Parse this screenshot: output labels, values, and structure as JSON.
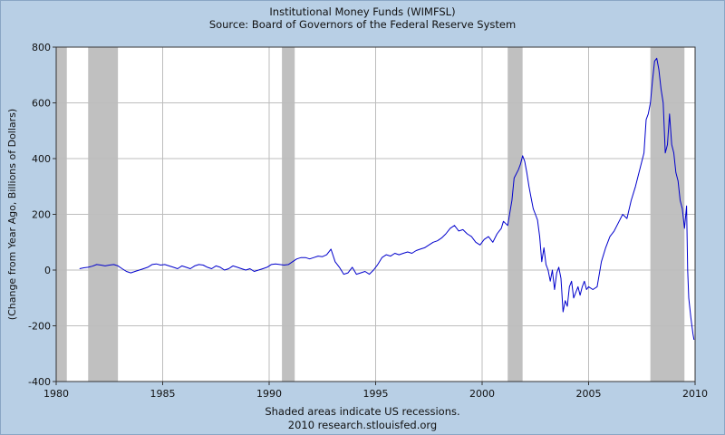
{
  "chart_data": {
    "type": "line",
    "title": "Institutional Money Funds (WIMFSL)",
    "subtitle": "Source: Board of Governors of the Federal Reserve System",
    "xlabel": "",
    "ylabel": "(Change from Year Ago, Billions of Dollars)",
    "xlim": [
      1980,
      2010
    ],
    "ylim": [
      -400,
      800
    ],
    "x_ticks": [
      1980,
      1985,
      1990,
      1995,
      2000,
      2005,
      2010
    ],
    "y_ticks": [
      -400,
      -200,
      0,
      200,
      400,
      600,
      800
    ],
    "grid": true,
    "line_color": "#0000cc",
    "recession_color": "#c0c0c0",
    "recessions": [
      [
        1980.0,
        1980.5
      ],
      [
        1981.5,
        1982.9
      ],
      [
        1990.6,
        1991.2
      ],
      [
        2001.2,
        2001.9
      ],
      [
        2007.9,
        2009.5
      ]
    ],
    "series": [
      {
        "x": [
          1981.1,
          1981.3,
          1981.5,
          1981.7,
          1981.9,
          1982.1,
          1982.3,
          1982.5,
          1982.7,
          1982.9,
          1983.1,
          1983.3,
          1983.5,
          1983.7,
          1983.9,
          1984.1,
          1984.3,
          1984.5,
          1984.7,
          1984.9,
          1985.1,
          1985.3,
          1985.5,
          1985.7,
          1985.9,
          1986.1,
          1986.3,
          1986.5,
          1986.7,
          1986.9,
          1987.1,
          1987.3,
          1987.5,
          1987.7,
          1987.9,
          1988.1,
          1988.3,
          1988.5,
          1988.7,
          1988.9,
          1989.1,
          1989.3,
          1989.5,
          1989.7,
          1989.9,
          1990.1,
          1990.3,
          1990.5,
          1990.7,
          1990.9,
          1991.1,
          1991.3,
          1991.5,
          1991.7,
          1991.9,
          1992.1,
          1992.3,
          1992.5,
          1992.7,
          1992.9,
          1993.1,
          1993.3,
          1993.5,
          1993.7,
          1993.9,
          1994.1,
          1994.3,
          1994.5,
          1994.7,
          1994.9,
          1995.1,
          1995.3,
          1995.5,
          1995.7,
          1995.9,
          1996.1,
          1996.3,
          1996.5,
          1996.7,
          1996.9,
          1997.1,
          1997.3,
          1997.5,
          1997.7,
          1997.9,
          1998.1,
          1998.3,
          1998.5,
          1998.7,
          1998.9,
          1999.1,
          1999.3,
          1999.5,
          1999.7,
          1999.9,
          2000.1,
          2000.3,
          2000.5,
          2000.7,
          2000.9,
          2001.0,
          2001.2,
          2001.4,
          2001.5,
          2001.7,
          2001.8,
          2001.9,
          2002.0,
          2002.1,
          2002.2,
          2002.3,
          2002.4,
          2002.5,
          2002.6,
          2002.7,
          2002.8,
          2002.9,
          2003.0,
          2003.1,
          2003.2,
          2003.3,
          2003.4,
          2003.5,
          2003.6,
          2003.7,
          2003.8,
          2003.9,
          2004.0,
          2004.1,
          2004.2,
          2004.3,
          2004.4,
          2004.5,
          2004.6,
          2004.7,
          2004.8,
          2004.9,
          2005.0,
          2005.2,
          2005.4,
          2005.6,
          2005.8,
          2006.0,
          2006.2,
          2006.4,
          2006.6,
          2006.8,
          2007.0,
          2007.2,
          2007.4,
          2007.6,
          2007.7,
          2007.8,
          2007.9,
          2008.0,
          2008.1,
          2008.2,
          2008.3,
          2008.4,
          2008.5,
          2008.6,
          2008.7,
          2008.8,
          2008.9,
          2009.0,
          2009.1,
          2009.2,
          2009.3,
          2009.4,
          2009.5,
          2009.6,
          2009.65,
          2009.7,
          2009.8,
          2009.9,
          2009.95
        ],
        "y": [
          5,
          8,
          10,
          14,
          20,
          18,
          15,
          18,
          20,
          15,
          5,
          -5,
          -10,
          -5,
          0,
          5,
          10,
          20,
          22,
          18,
          20,
          15,
          10,
          5,
          15,
          10,
          5,
          15,
          20,
          18,
          10,
          5,
          15,
          10,
          0,
          5,
          15,
          10,
          5,
          0,
          5,
          -5,
          0,
          5,
          10,
          20,
          22,
          20,
          18,
          20,
          30,
          40,
          45,
          45,
          40,
          45,
          50,
          48,
          55,
          75,
          30,
          10,
          -15,
          -10,
          10,
          -15,
          -10,
          -5,
          -15,
          0,
          20,
          45,
          55,
          50,
          60,
          55,
          60,
          65,
          60,
          70,
          75,
          80,
          90,
          100,
          105,
          115,
          130,
          150,
          160,
          140,
          145,
          130,
          120,
          100,
          90,
          110,
          120,
          100,
          130,
          150,
          175,
          160,
          250,
          330,
          360,
          380,
          410,
          390,
          350,
          300,
          260,
          220,
          200,
          180,
          120,
          30,
          80,
          20,
          0,
          -40,
          0,
          -70,
          -10,
          10,
          -30,
          -150,
          -110,
          -130,
          -60,
          -40,
          -100,
          -80,
          -60,
          -90,
          -60,
          -40,
          -70,
          -60,
          -70,
          -60,
          30,
          80,
          120,
          140,
          170,
          200,
          185,
          250,
          300,
          360,
          420,
          540,
          560,
          600,
          680,
          750,
          760,
          720,
          650,
          600,
          420,
          450,
          560,
          450,
          420,
          350,
          320,
          250,
          220,
          150,
          230,
          0,
          -100,
          -170,
          -230,
          -250
        ]
      }
    ],
    "footer": [
      "Shaded areas indicate US recessions.",
      "2010 research.stlouisfed.org"
    ]
  }
}
